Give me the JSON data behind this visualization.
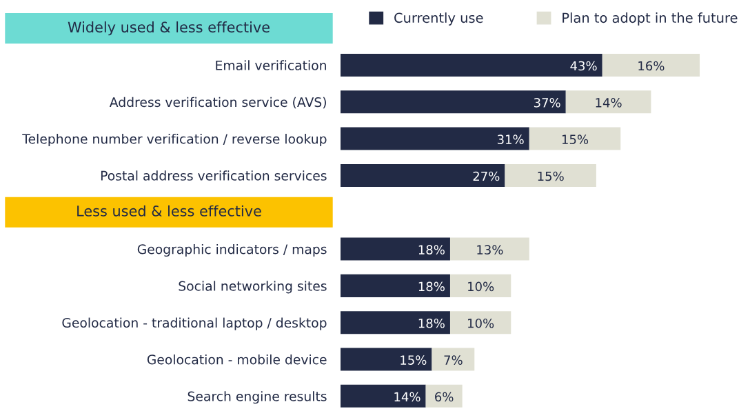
{
  "chart_data": {
    "type": "bar",
    "orientation": "horizontal",
    "stacked": true,
    "categories": [
      "Email verification",
      "Address verification service (AVS)",
      "Telephone number verification / reverse lookup",
      "Postal address verification services",
      null,
      "Geographic indicators / maps",
      "Social networking sites",
      "Geolocation - traditional laptop / desktop",
      "Geolocation - mobile device",
      "Search engine results"
    ],
    "series": [
      {
        "name": "Currently use",
        "color": "#222a45",
        "values": [
          43,
          37,
          31,
          27,
          null,
          18,
          18,
          18,
          15,
          14
        ],
        "value_labels": [
          "43%",
          "37%",
          "31%",
          "27%",
          null,
          "18%",
          "18%",
          "18%",
          "15%",
          "14%"
        ]
      },
      {
        "name": "Plan to adopt in the future",
        "color": "#e0e0d3",
        "values": [
          16,
          14,
          15,
          15,
          null,
          13,
          10,
          10,
          7,
          6
        ],
        "value_labels": [
          "16%",
          "14%",
          "15%",
          "15%",
          null,
          "13%",
          "10%",
          "10%",
          "7%",
          "6%"
        ]
      }
    ],
    "annotations": [
      "Widely used & less effective",
      "Less used & less effective"
    ],
    "legend": "top right"
  }
}
